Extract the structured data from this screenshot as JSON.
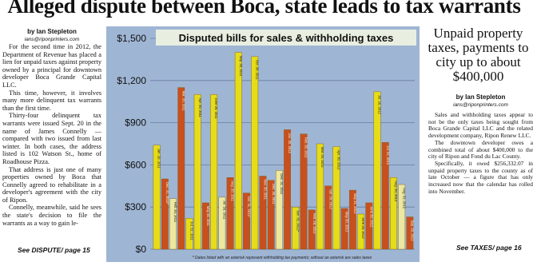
{
  "headline": "Alleged dispute between Boca, state leads to tax warrants",
  "left_story": {
    "byline": "by Ian Stepleton",
    "email": "ians@riponprinters.com",
    "paragraphs": [
      "For the second time in 2012, the Department of Revenue has placed a lien for unpaid taxes against property owned by a principal for downtown developer Boca Grande Capital LLC.",
      "This time, however, it involves many more delinquent tax warrants than the first time.",
      "Thirty-four delinquent tax warrants were issued Sept. 20 in the name of James Connelly — compared with two issued from last winter. In both cases, the address listed is 102 Watson St., home of Roadhouse Pizza.",
      "That address is just one of many properties owned by Boca that Connelly agreed to rehabilitate in a developer's agreement with the city of Ripon.",
      "Connelly, meanwhile, said he sees the state's decision to file the warrants as a way to gain le-"
    ],
    "jump": "See DISPUTE/ page 15"
  },
  "right_story": {
    "headline": "Unpaid property taxes, payments to city up to about $400,000",
    "byline": "by Ian Stepleton",
    "email": "ians@riponprinters.com",
    "paragraphs": [
      "Sales and withholding taxes appear to not be the only taxes being sought from Boca Grande Capital LLC and the related development company, Ripon Renew LLC.",
      "The downtown developer owes a combined total of about $400,000 to the city of Ripon and Fond du Lac County.",
      "Specifically, it owed $256,332.07 in unpaid property taxes to the county as of late October — a figure that has only increased now that the calendar has rolled into November."
    ],
    "jump": "See TAXES/ page 16"
  },
  "colors": {
    "chart_bg": "#9fb5d4",
    "yellow_bar": "#e6dc18",
    "orange_bar": "#c8501e",
    "pale_bar": "#ece8a0",
    "grid": "#6a7ea0"
  },
  "chart_data": {
    "type": "bar",
    "title": "Disputed bills for sales & withholding taxes",
    "footnote": "* Dates listed with an asterisk represent withholding tax payments; without an asterisk are sales taxes",
    "ylim": [
      0,
      1500
    ],
    "yticks": [
      "$0",
      "$300",
      "$600",
      "$900",
      "$1,200",
      "$1,500"
    ],
    "values": [
      740,
      500,
      360,
      1150,
      220,
      1100,
      330,
      1100,
      370,
      510,
      1400,
      400,
      1370,
      520,
      490,
      560,
      850,
      300,
      820,
      280,
      750,
      450,
      730,
      290,
      420,
      250,
      330,
      1120,
      760,
      510,
      460,
      230
    ],
    "bar_labels": [
      "Jan. 20, 2011",
      "Dec. 31, 2010*",
      "Feb. 20, 2011",
      "Mar. 20, 2011",
      "Jul. 31, 2011",
      "Apr. 20, 2011",
      "May 20, 2011",
      "June 20, 2011",
      "Jul. 20, 2011",
      "Aug. 20, 2011",
      "Sep. 20, 2011",
      "Oct. 31, 2011*",
      "Oct. 20, 2011",
      "Nov. 20, 2011",
      "Dec. 20, 2011",
      "Dec. 31, 2011",
      "Jan. 20, 2012",
      "Jan. 31, 2012*",
      "Feb. 20, 2012",
      "Feb. 29, 2012",
      "Mar. 20, 2012",
      "Apr. 20, 2012",
      "Apr. 30, 2012",
      "May 20, 2012",
      "May 31, 2012",
      "June 20, 2012",
      "June 30, 2012",
      "Jul. 20, 2012",
      "Jul. 31, 2012",
      "Aug. 20, 2012",
      "Aug. 31, 2012",
      "Sep. 20, 2012"
    ],
    "bar_colors": [
      "yellow",
      "orange",
      "pale",
      "orange",
      "yellow",
      "yellow",
      "orange",
      "yellow",
      "pale",
      "orange",
      "yellow",
      "orange",
      "yellow",
      "orange",
      "orange",
      "pale",
      "orange",
      "yellow",
      "orange",
      "orange",
      "yellow",
      "orange",
      "yellow",
      "orange",
      "orange",
      "yellow",
      "orange",
      "yellow",
      "orange",
      "yellow",
      "pale",
      "orange"
    ],
    "grid": true
  }
}
